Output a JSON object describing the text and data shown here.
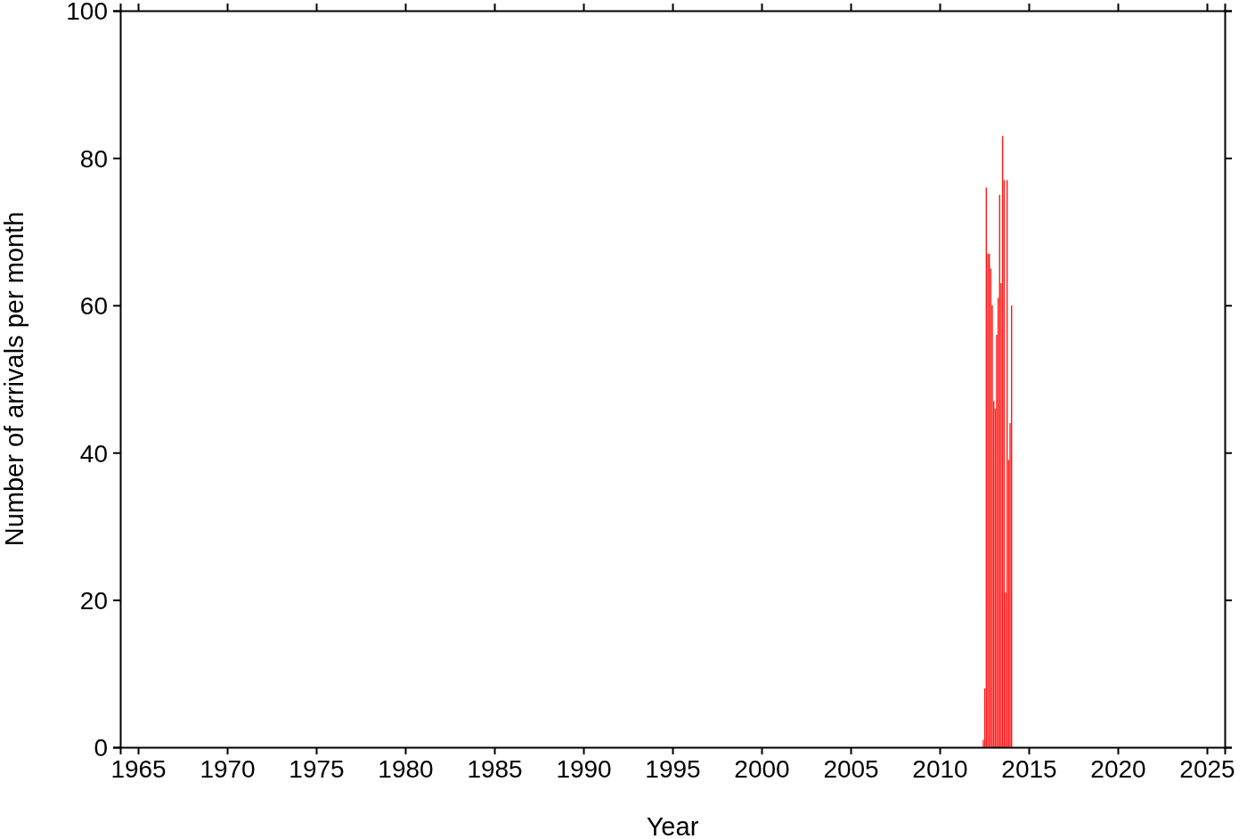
{
  "chart_data": {
    "type": "bar",
    "xlabel": "Year",
    "ylabel": "Number of arrivals per month",
    "x": [
      "2012-06",
      "2012-07",
      "2012-08",
      "2012-09",
      "2012-10",
      "2012-11",
      "2012-12",
      "2013-01",
      "2013-02",
      "2013-03",
      "2013-04",
      "2013-05",
      "2013-06",
      "2013-07",
      "2013-08",
      "2013-09",
      "2013-10",
      "2013-11",
      "2013-12",
      "2014-01"
    ],
    "values": [
      1,
      8,
      76,
      67,
      67,
      65,
      60,
      47,
      46,
      56,
      61,
      75,
      63,
      83,
      77,
      21,
      77,
      39,
      44,
      60
    ],
    "color": "#ff1a1a",
    "xlim": [
      "1964",
      "2026"
    ],
    "xticks": [
      "1965",
      "1970",
      "1975",
      "1980",
      "1985",
      "1990",
      "1995",
      "2000",
      "2005",
      "2010",
      "2015",
      "2020",
      "2025"
    ],
    "ylim": [
      0,
      100
    ],
    "yticks": [
      0,
      20,
      40,
      60,
      80,
      100
    ],
    "grid": false
  }
}
